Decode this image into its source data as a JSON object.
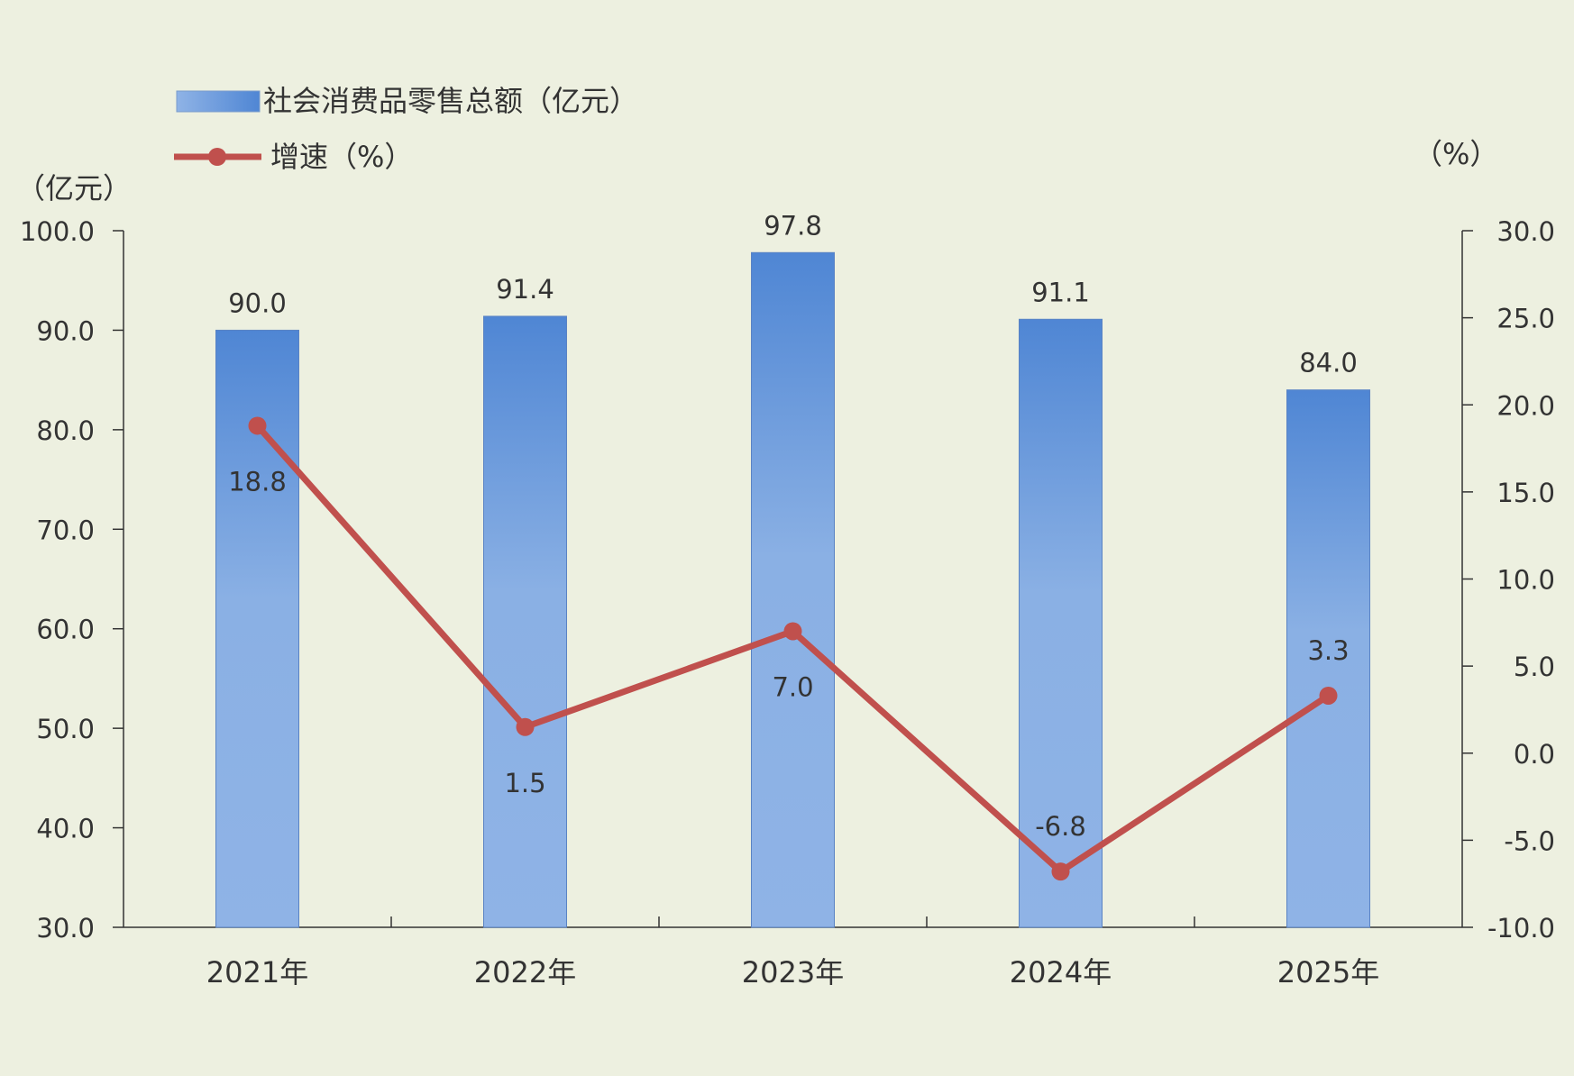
{
  "chart_data": {
    "type": "bar",
    "categories": [
      "2021年",
      "2022年",
      "2023年",
      "2024年",
      "2025年"
    ],
    "series": [
      {
        "name": "社会消费品零售总额（亿元）",
        "type": "bar",
        "axis": "left",
        "values": [
          90.0,
          91.4,
          97.8,
          91.1,
          84.0
        ],
        "labels": [
          "90.0",
          "91.4",
          "97.8",
          "91.1",
          "84.0"
        ],
        "color": "#5b8fd6"
      },
      {
        "name": "增速（%）",
        "type": "line",
        "axis": "right",
        "values": [
          18.8,
          1.5,
          7.0,
          -6.8,
          3.3
        ],
        "labels": [
          "18.8",
          "1.5",
          "7.0",
          "-6.8",
          "3.3"
        ],
        "color": "#c0504d"
      }
    ],
    "y_left": {
      "unit_label": "（亿元）",
      "min": 30,
      "max": 100,
      "ticks": [
        "30.0",
        "40.0",
        "50.0",
        "60.0",
        "70.0",
        "80.0",
        "90.0",
        "100.0"
      ]
    },
    "y_right": {
      "unit_label": "（%）",
      "min": -10,
      "max": 30,
      "ticks": [
        "-10.0",
        "-5.0",
        "0.0",
        "5.0",
        "10.0",
        "15.0",
        "20.0",
        "25.0",
        "30.0"
      ]
    },
    "legend_position": "top-left",
    "grid": false
  }
}
